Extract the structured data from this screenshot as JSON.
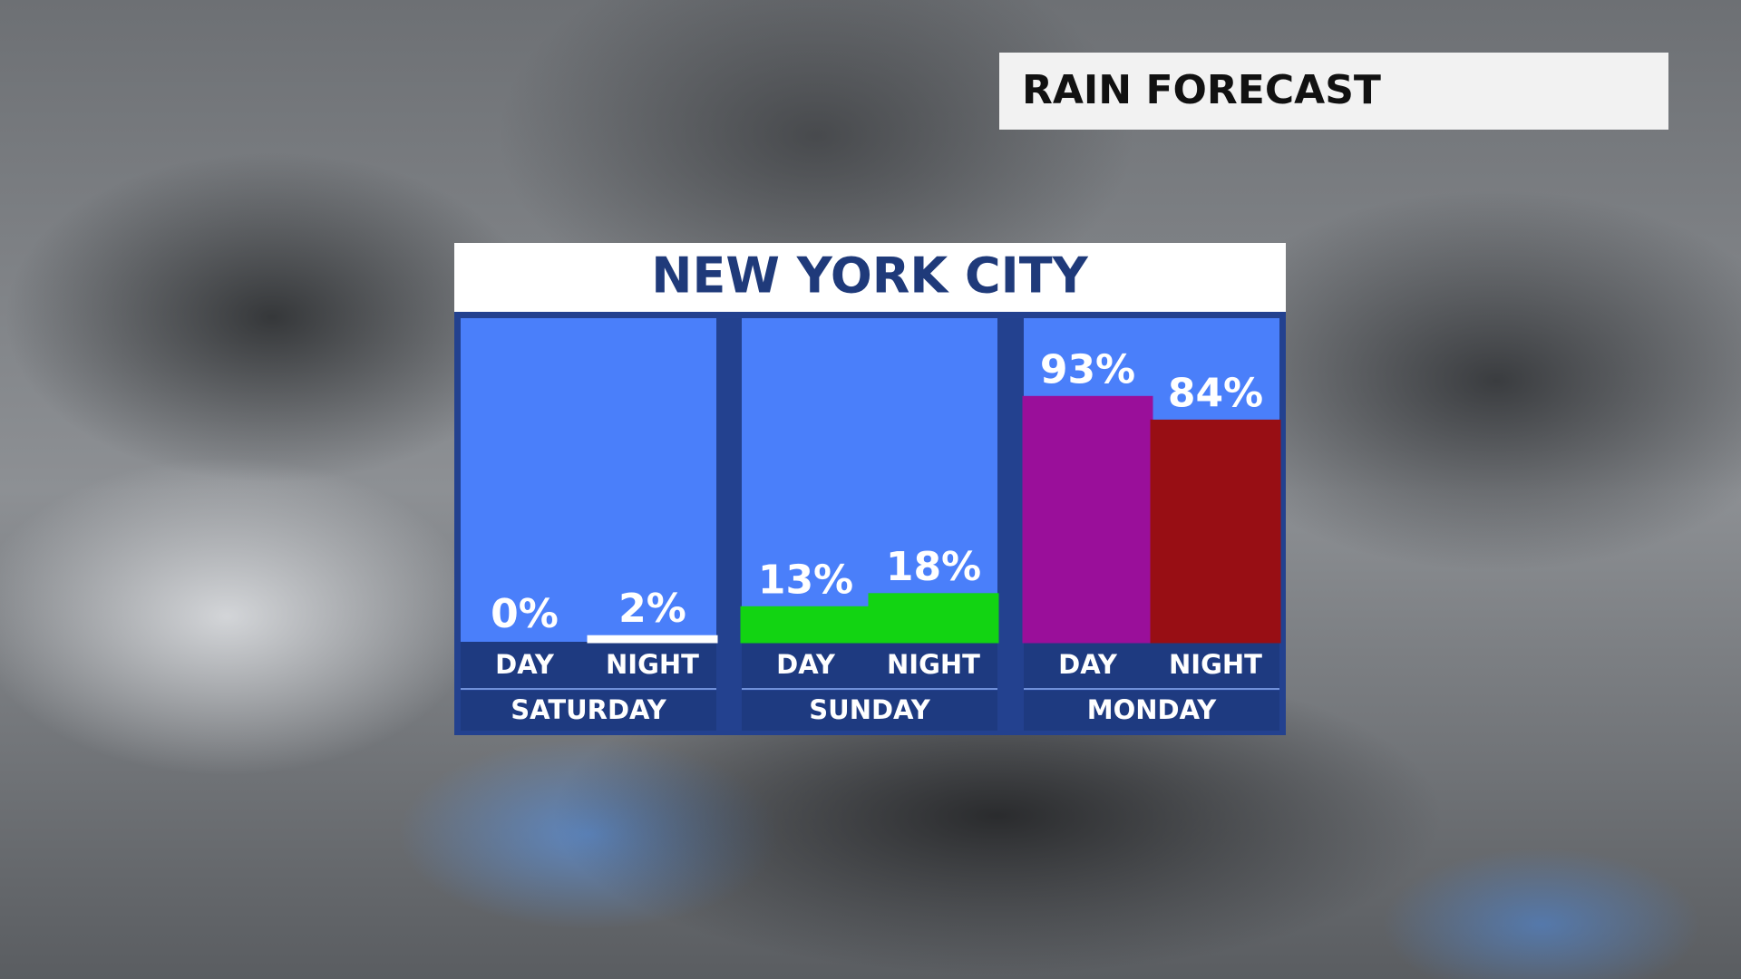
{
  "header": {
    "title": "RAIN FORECAST"
  },
  "chart_data": {
    "type": "grouped-bar",
    "title": "NEW YORK CITY",
    "ylim": [
      0,
      100
    ],
    "groups": [
      {
        "name": "SATURDAY",
        "categories": [
          "DAY",
          "NIGHT"
        ],
        "values": [
          0,
          2
        ],
        "value_labels": [
          "0%",
          "2%"
        ],
        "colors": [
          "#ffffff",
          "#ffffff"
        ]
      },
      {
        "name": "SUNDAY",
        "categories": [
          "DAY",
          "NIGHT"
        ],
        "values": [
          13,
          18
        ],
        "value_labels": [
          "13%",
          "18%"
        ],
        "colors": [
          "#12d412",
          "#12d412"
        ]
      },
      {
        "name": "MONDAY",
        "categories": [
          "DAY",
          "NIGHT"
        ],
        "values": [
          93,
          84
        ],
        "value_labels": [
          "93%",
          "84%"
        ],
        "colors": [
          "#9a0f9a",
          "#980e14"
        ]
      }
    ]
  }
}
